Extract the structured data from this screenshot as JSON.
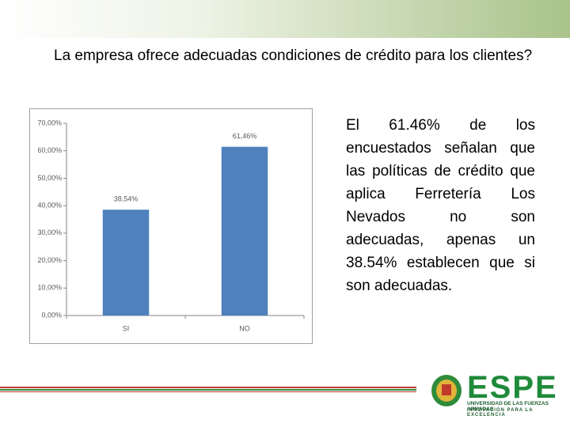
{
  "header": {
    "title": "La empresa ofrece adecuadas condiciones de crédito para los clientes?"
  },
  "chart_data": {
    "type": "bar",
    "categories": [
      "SI",
      "NO"
    ],
    "values": [
      38.54,
      61.46
    ],
    "value_labels": [
      "38,54%",
      "61,46%"
    ],
    "color": "#4f81bd",
    "ylim": [
      0,
      70
    ],
    "yticks": [
      {
        "value": 0,
        "label": "0,00%"
      },
      {
        "value": 10,
        "label": "10,00%"
      },
      {
        "value": 20,
        "label": "20,00%"
      },
      {
        "value": 30,
        "label": "30,00%"
      },
      {
        "value": 40,
        "label": "40,00%"
      },
      {
        "value": 50,
        "label": "50,00%"
      },
      {
        "value": 60,
        "label": "60,00%"
      },
      {
        "value": 70,
        "label": "70,00%"
      }
    ],
    "grid": false
  },
  "body": {
    "text": "El 61.46% de los encuestados señalan que las políticas de crédito que aplica Ferretería Los Nevados no son adecuadas, apenas un 38.54% establecen que si son adecuadas."
  },
  "logo": {
    "name": "ESPE",
    "line1": "UNIVERSIDAD DE LAS FUERZAS ARMADAS",
    "line2": "INNOVACIÓN PARA LA EXCELENCIA"
  }
}
